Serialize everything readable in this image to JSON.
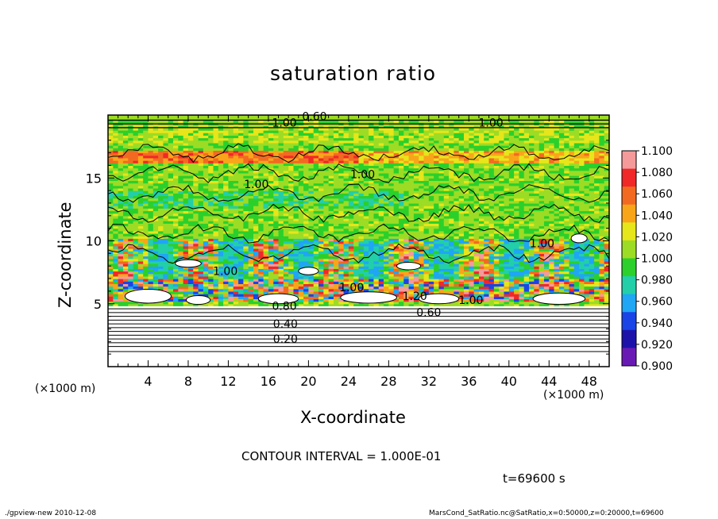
{
  "chart_data": {
    "type": "heatmap",
    "title": "saturation ratio",
    "xlabel": "X-coordinate",
    "ylabel": "Z-coordinate",
    "x_unit_label": "(×1000 m)",
    "z_unit_label": "(×1000 m)",
    "xlim": [
      0,
      50
    ],
    "ylim": [
      0,
      20
    ],
    "x_ticks": [
      4,
      8,
      12,
      16,
      20,
      24,
      28,
      32,
      36,
      40,
      44,
      48
    ],
    "y_ticks": [
      5,
      10,
      15
    ],
    "colorbar": {
      "levels": [
        "1.100",
        "1.080",
        "1.060",
        "1.040",
        "1.020",
        "1.000",
        "0.980",
        "0.960",
        "0.940",
        "0.920",
        "0.900"
      ],
      "colors": [
        "#f49a9a",
        "#f02828",
        "#f26a22",
        "#f9a51a",
        "#e6e61a",
        "#9ddc24",
        "#2bd02b",
        "#22cfa9",
        "#1fa6f5",
        "#1a44e6",
        "#1c12aa",
        "#6a1ab4"
      ]
    },
    "contour_labels": [
      {
        "text": "0.60",
        "x": 20.6,
        "z": 19.6
      },
      {
        "text": "1.00",
        "x": 17.6,
        "z": 19.1
      },
      {
        "text": "1.00",
        "x": 38.2,
        "z": 19.1
      },
      {
        "text": "1.00",
        "x": 14.8,
        "z": 14.2
      },
      {
        "text": "1.00",
        "x": 25.4,
        "z": 15.0
      },
      {
        "text": "1.00",
        "x": 43.3,
        "z": 9.5
      },
      {
        "text": "1.00",
        "x": 11.7,
        "z": 7.3
      },
      {
        "text": "1.00",
        "x": 24.3,
        "z": 6.0
      },
      {
        "text": "1.20",
        "x": 30.6,
        "z": 5.3
      },
      {
        "text": "1.00",
        "x": 36.2,
        "z": 5.0
      },
      {
        "text": "0.80",
        "x": 17.6,
        "z": 4.5
      },
      {
        "text": "0.60",
        "x": 32.0,
        "z": 4.0
      },
      {
        "text": "0.40",
        "x": 17.7,
        "z": 3.1
      },
      {
        "text": "0.20",
        "x": 17.7,
        "z": 1.9
      }
    ],
    "contour_interval_text": "CONTOUR INTERVAL = 1.000E-01",
    "time_text": "t=69600 s"
  },
  "footer": {
    "left": "./gpview-new  2010-12-08",
    "right": "MarsCond_SatRatio.nc@SatRatio,x=0:50000,z=0:20000,t=69600"
  }
}
